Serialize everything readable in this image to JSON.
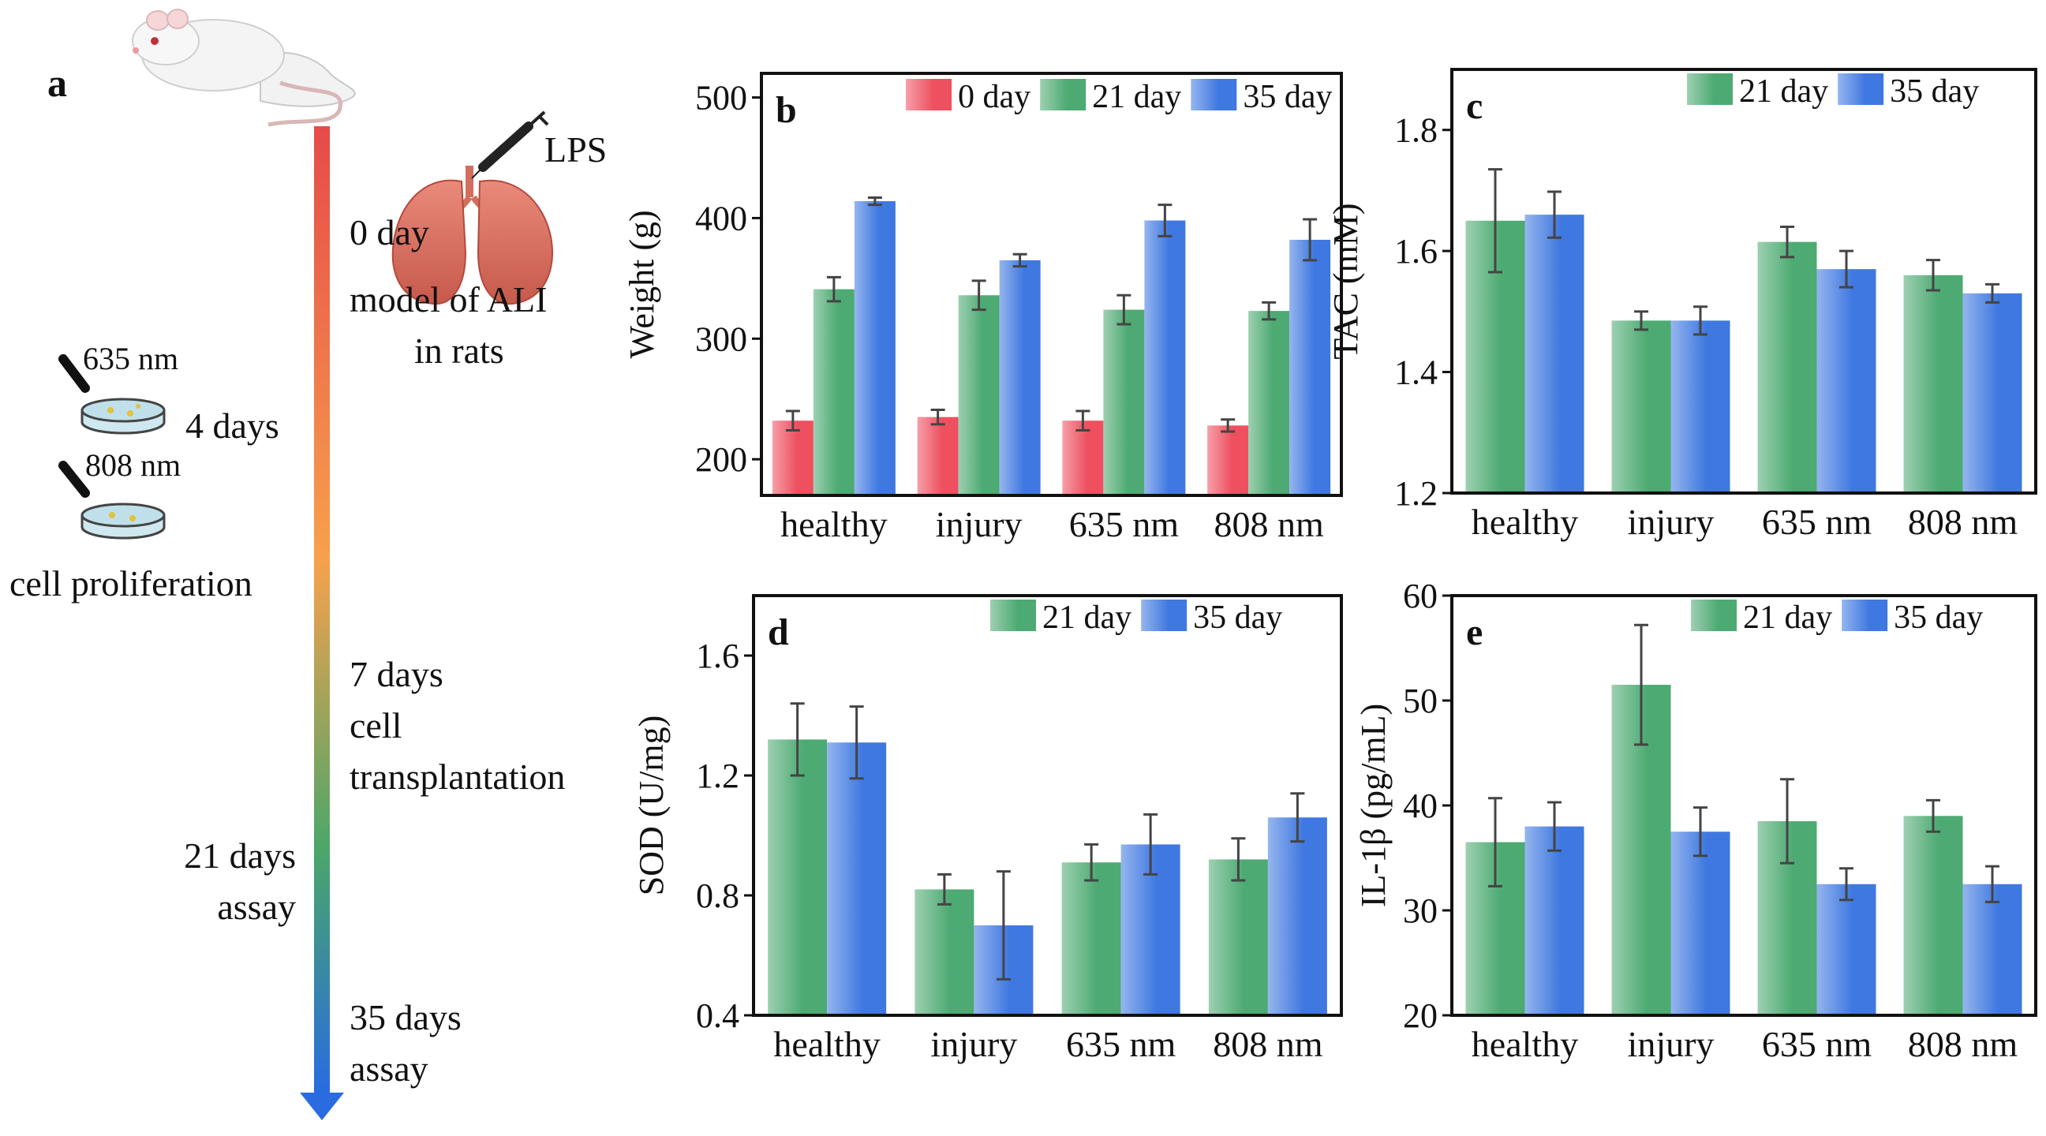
{
  "panel_a": {
    "label": "a",
    "lps_label": "LPS",
    "day0_label": "0 day",
    "model_line1": "model of ALI",
    "model_line2": "in rats",
    "wave635": "635 nm",
    "wave808": "808 nm",
    "days4": "4 days",
    "cell_prolif": "cell proliferation",
    "days7": "7 days",
    "cell_line": "cell",
    "transplant": "transplantation",
    "days21": "21 days",
    "assay21": "assay",
    "days35": "35 days",
    "assay35": "assay",
    "colors": {
      "arrow_top": "#e64a4a",
      "arrow_mid": "#f7a14c",
      "arrow_low": "#4aa66a",
      "arrow_bottom": "#2a6be0"
    }
  },
  "chart_data": [
    {
      "id": "b",
      "panel_label": "b",
      "type": "bar",
      "ylabel": "Weight (g)",
      "ylim": [
        170,
        520
      ],
      "yticks": [
        "200",
        "300",
        "400",
        "500"
      ],
      "categories": [
        "healthy",
        "injury",
        "635 nm",
        "808 nm"
      ],
      "series": [
        {
          "name": "0 day",
          "color": "#ee5060",
          "values": [
            232,
            235,
            232,
            228
          ],
          "errors": [
            8,
            6,
            8,
            5
          ]
        },
        {
          "name": "21 day",
          "color": "#4caa72",
          "values": [
            341,
            336,
            324,
            323
          ],
          "errors": [
            10,
            12,
            12,
            7
          ]
        },
        {
          "name": "35 day",
          "color": "#3f78e0",
          "values": [
            414,
            365,
            398,
            382
          ],
          "errors": [
            3,
            5,
            13,
            17
          ]
        }
      ]
    },
    {
      "id": "c",
      "panel_label": "c",
      "type": "bar",
      "ylabel": "TAC (mM)",
      "ylim": [
        1.2,
        1.9
      ],
      "yticks": [
        "1.2",
        "1.4",
        "1.6",
        "1.8"
      ],
      "categories": [
        "healthy",
        "injury",
        "635 nm",
        "808 nm"
      ],
      "series": [
        {
          "name": "21 day",
          "color": "#4caa72",
          "values": [
            1.65,
            1.485,
            1.615,
            1.56
          ],
          "errors": [
            0.085,
            0.015,
            0.025,
            0.025
          ]
        },
        {
          "name": "35 day",
          "color": "#3f78e0",
          "values": [
            1.66,
            1.485,
            1.57,
            1.53
          ],
          "errors": [
            0.038,
            0.023,
            0.03,
            0.015
          ]
        }
      ]
    },
    {
      "id": "d",
      "panel_label": "d",
      "type": "bar",
      "ylabel": "SOD (U/mg)",
      "ylim": [
        0.4,
        1.8
      ],
      "yticks": [
        "0.4",
        "0.8",
        "1.2",
        "1.6"
      ],
      "categories": [
        "healthy",
        "injury",
        "635 nm",
        "808 nm"
      ],
      "series": [
        {
          "name": "21 day",
          "color": "#4caa72",
          "values": [
            1.32,
            0.82,
            0.91,
            0.92
          ],
          "errors": [
            0.12,
            0.05,
            0.06,
            0.07
          ]
        },
        {
          "name": "35 day",
          "color": "#3f78e0",
          "values": [
            1.31,
            0.7,
            0.97,
            1.06
          ],
          "errors": [
            0.12,
            0.18,
            0.1,
            0.08
          ]
        }
      ]
    },
    {
      "id": "e",
      "panel_label": "e",
      "type": "bar",
      "ylabel": "IL-1β (pg/mL)",
      "ylim": [
        20,
        60
      ],
      "yticks": [
        "20",
        "30",
        "40",
        "50",
        "60"
      ],
      "categories": [
        "healthy",
        "injury",
        "635 nm",
        "808 nm"
      ],
      "series": [
        {
          "name": "21 day",
          "color": "#4caa72",
          "values": [
            36.5,
            51.5,
            38.5,
            39
          ],
          "errors": [
            4.2,
            5.7,
            4.0,
            1.5
          ]
        },
        {
          "name": "35 day",
          "color": "#3f78e0",
          "values": [
            38,
            37.5,
            32.5,
            32.5
          ],
          "errors": [
            2.3,
            2.3,
            1.5,
            1.7
          ]
        }
      ]
    }
  ]
}
